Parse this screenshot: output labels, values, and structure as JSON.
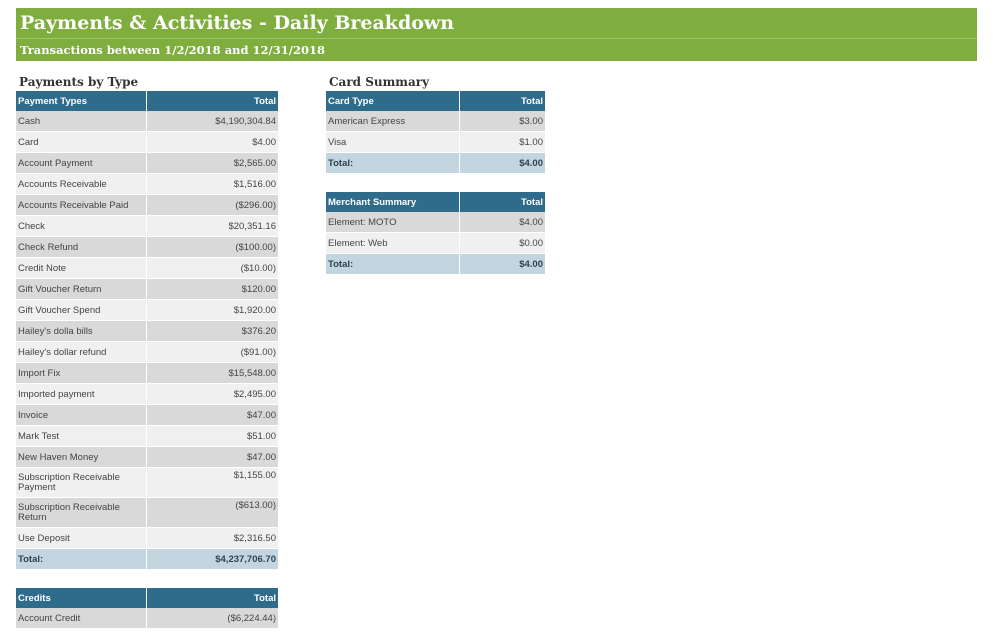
{
  "header": {
    "title": "Payments & Activities - Daily Breakdown",
    "subtitle": "Transactions between 1/2/2018 and 12/31/2018"
  },
  "colors": {
    "banner": "#7fae3f",
    "table_header": "#2f6c8c",
    "total_row": "#c3d6df"
  },
  "payments_by_type": {
    "section_title": "Payments by Type",
    "col_type": "Payment Types",
    "col_total": "Total",
    "rows": [
      {
        "label": "Cash",
        "value": "$4,190,304.84"
      },
      {
        "label": "Card",
        "value": "$4.00"
      },
      {
        "label": "Account Payment",
        "value": "$2,565.00"
      },
      {
        "label": "Accounts Receivable",
        "value": "$1,516.00"
      },
      {
        "label": "Accounts Receivable Paid",
        "value": "($296.00)"
      },
      {
        "label": "Check",
        "value": "$20,351.16"
      },
      {
        "label": "Check Refund",
        "value": "($100.00)"
      },
      {
        "label": "Credit Note",
        "value": "($10.00)"
      },
      {
        "label": "Gift Voucher Return",
        "value": "$120.00"
      },
      {
        "label": "Gift Voucher Spend",
        "value": "$1,920.00"
      },
      {
        "label": "Hailey's dolla bills",
        "value": "$376.20"
      },
      {
        "label": "Hailey's dollar refund",
        "value": "($91.00)"
      },
      {
        "label": "Import Fix",
        "value": "$15,548.00"
      },
      {
        "label": "Imported payment",
        "value": "$2,495.00"
      },
      {
        "label": "Invoice",
        "value": "$47.00"
      },
      {
        "label": "Mark Test",
        "value": "$51.00"
      },
      {
        "label": "New Haven Money",
        "value": "$47.00"
      },
      {
        "label": "Subscription Receivable Payment",
        "value": "$1,155.00"
      },
      {
        "label": "Subscription Receivable Return",
        "value": "($613.00)"
      },
      {
        "label": "Use Deposit",
        "value": "$2,316.50"
      }
    ],
    "total_label": "Total:",
    "total_value": "$4,237,706.70"
  },
  "credits": {
    "col_type": "Credits",
    "col_total": "Total",
    "rows": [
      {
        "label": "Account Credit",
        "value": "($6,224.44)"
      }
    ]
  },
  "card_summary": {
    "section_title": "Card Summary",
    "col_type": "Card Type",
    "col_total": "Total",
    "rows": [
      {
        "label": "American Express",
        "value": "$3.00"
      },
      {
        "label": "Visa",
        "value": "$1.00"
      }
    ],
    "total_label": "Total:",
    "total_value": "$4.00"
  },
  "merchant_summary": {
    "col_type": "Merchant Summary",
    "col_total": "Total",
    "rows": [
      {
        "label": "Element: MOTO",
        "value": "$4.00"
      },
      {
        "label": "Element: Web",
        "value": "$0.00"
      }
    ],
    "total_label": "Total:",
    "total_value": "$4.00"
  }
}
